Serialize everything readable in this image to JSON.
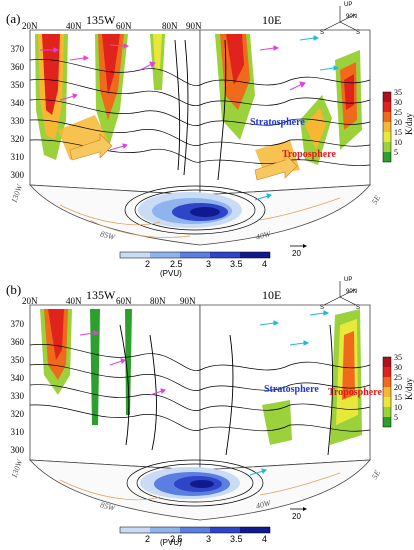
{
  "panels": [
    {
      "letter": "(a)",
      "lon_left": "135W",
      "lon_right": "10E",
      "lon_mid": "90N",
      "lat_labels": [
        "20N",
        "40N",
        "60N",
        "80N"
      ],
      "yticks": [
        "370",
        "360",
        "350",
        "340",
        "330",
        "320",
        "310",
        "300"
      ],
      "stratosphere": "Stratosphere",
      "troposphere": "Troposphere",
      "bottom_lons": [
        "85W",
        "40W",
        "5E"
      ],
      "left_edge_lon": "130W",
      "vector_ref": "20",
      "compass": {
        "up": "UP",
        "n": "90N",
        "s1": "S",
        "s2": "S"
      },
      "colorbar_ticks": [
        "35",
        "30",
        "25",
        "20",
        "15",
        "10",
        "5"
      ],
      "colorbar_unit": "K/day",
      "pv_ticks": [
        "2",
        "2.5",
        "3",
        "3.5",
        "4"
      ],
      "pv_unit": "(PVU)"
    },
    {
      "letter": "(b)",
      "lon_left": "135W",
      "lon_right": "10E",
      "lon_mid": "90N",
      "lat_labels": [
        "20N",
        "40N",
        "60N",
        "80N"
      ],
      "yticks": [
        "370",
        "360",
        "350",
        "340",
        "330",
        "320",
        "310",
        "300"
      ],
      "stratosphere": "Stratosphere",
      "troposphere": "Troposphere",
      "bottom_lons": [
        "85W",
        "40W",
        "5E"
      ],
      "left_edge_lon": "130W",
      "vector_ref": "20",
      "compass": {
        "up": "UP",
        "n": "90N",
        "s1": "S",
        "s2": "S"
      },
      "colorbar_ticks": [
        "35",
        "30",
        "25",
        "20",
        "15",
        "10",
        "5"
      ],
      "colorbar_unit": "K/day",
      "pv_ticks": [
        "2",
        "2.5",
        "3",
        "3.5",
        "4"
      ],
      "pv_unit": "(PVU)"
    }
  ],
  "colors": {
    "heating": [
      "#2ca02c",
      "#9bd13b",
      "#e8e83a",
      "#f7b733",
      "#f06a1c",
      "#e0231c",
      "#b0101a"
    ],
    "pv": [
      "#c9dbf5",
      "#8fb3ec",
      "#5b7fe0",
      "#2f45c8",
      "#101a8e"
    ],
    "vector_magenta": "#e040e0",
    "vector_cyan": "#20b8d8",
    "contour_orange": "#e0a060"
  }
}
